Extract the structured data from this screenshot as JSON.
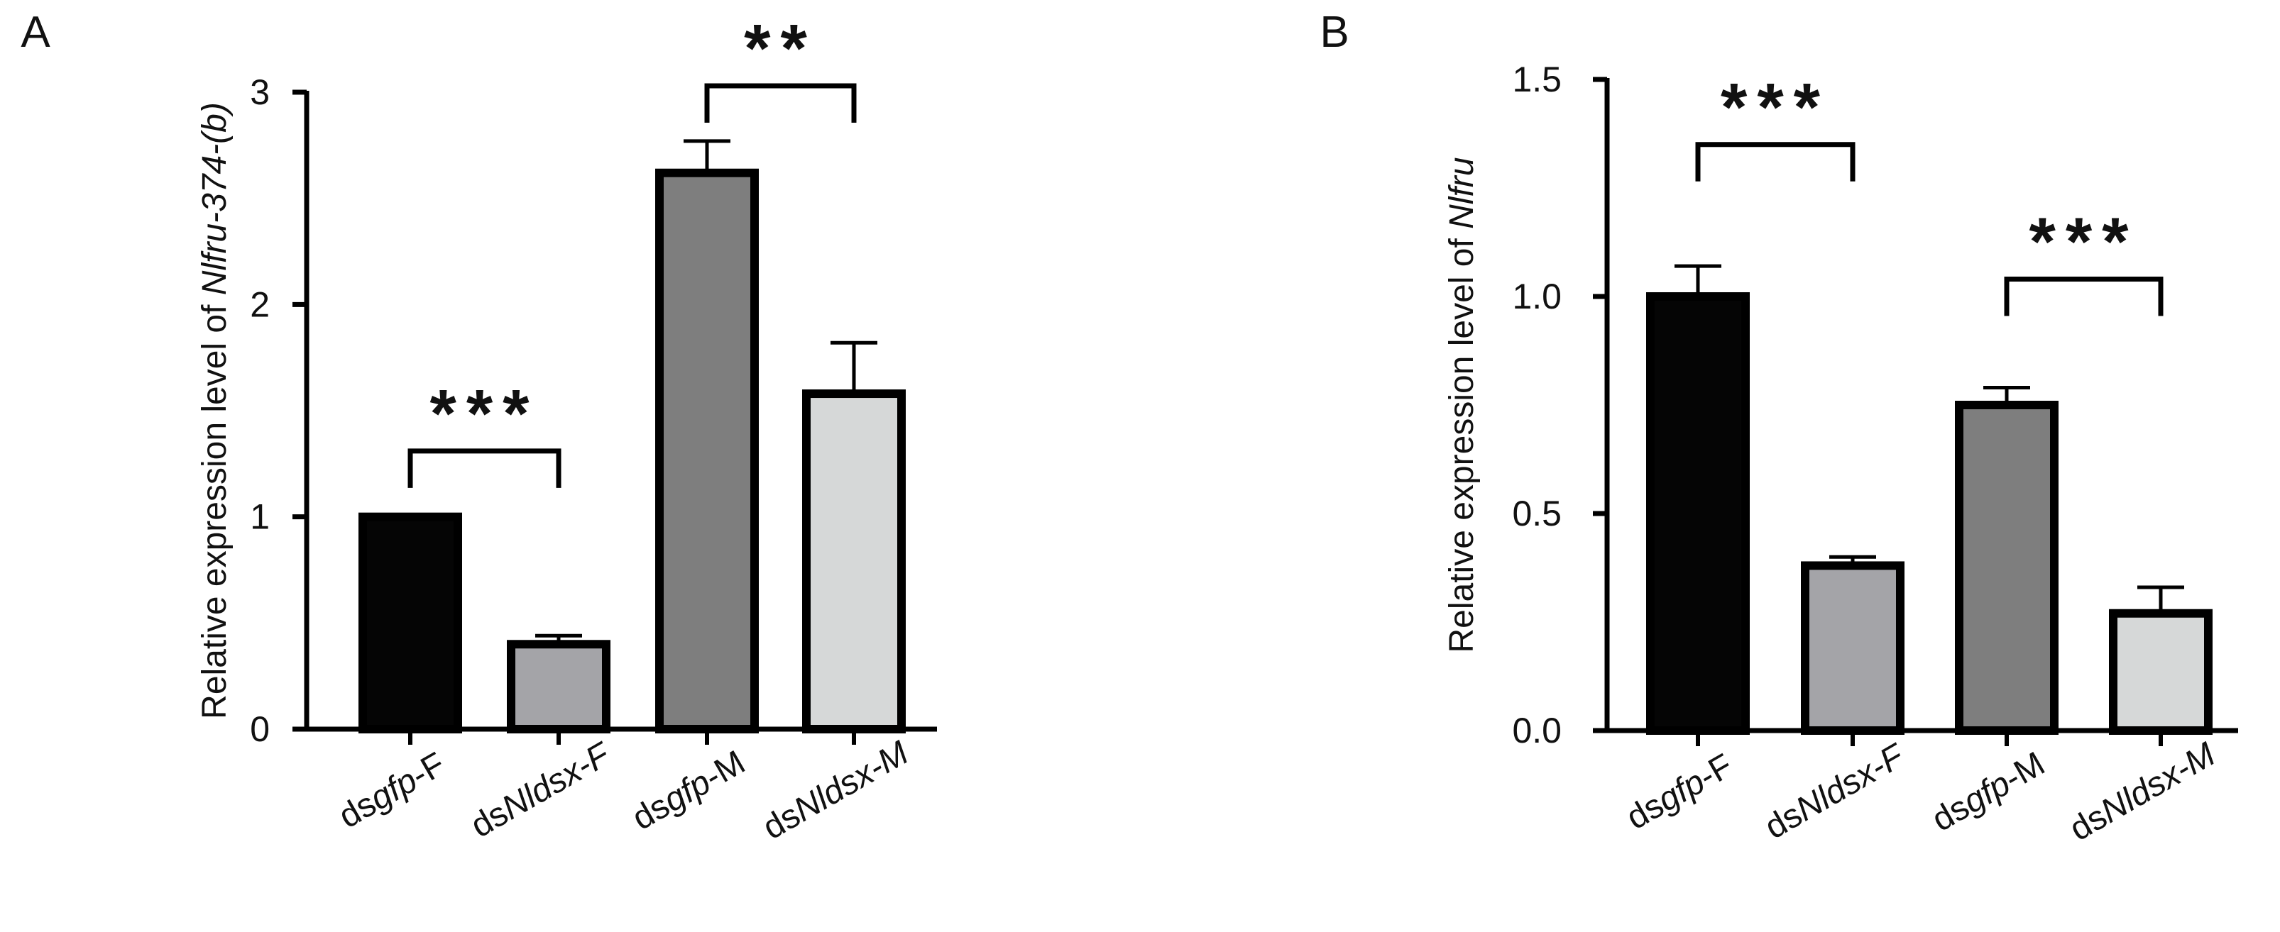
{
  "figure": {
    "colors": {
      "axis": "#000000",
      "bar_outline": "#000000",
      "text": "#111111"
    }
  },
  "chart_data": [
    {
      "panel_label": "A",
      "type": "bar",
      "categories": [
        "dsgfp-F",
        "dsNldsx-F",
        "dsgfp-M",
        "dsNldsx-M"
      ],
      "category_parts": [
        [
          {
            "t": "ds",
            "i": false
          },
          {
            "t": "gfp",
            "i": true
          },
          {
            "t": "-F",
            "i": false
          }
        ],
        [
          {
            "t": "ds",
            "i": false
          },
          {
            "t": "Nldsx",
            "i": true
          },
          {
            "t": "-F",
            "i": true
          }
        ],
        [
          {
            "t": "ds",
            "i": false
          },
          {
            "t": "gfp",
            "i": true
          },
          {
            "t": "-M",
            "i": false
          }
        ],
        [
          {
            "t": "ds",
            "i": false
          },
          {
            "t": "Nldsx",
            "i": true
          },
          {
            "t": "-M",
            "i": true
          }
        ]
      ],
      "values": [
        1.0,
        0.4,
        2.62,
        1.58
      ],
      "errors": [
        0.01,
        0.04,
        0.15,
        0.24
      ],
      "colors": [
        "#050505",
        "#a4a4a8",
        "#7e7e7e",
        "#d6d8d8"
      ],
      "ylabel": "Relative expression level of Nlfru-374-(b)",
      "ylabel_parts": [
        {
          "t": "Relative expression level of ",
          "i": false
        },
        {
          "t": "Nlfru-374-(b)",
          "i": true
        }
      ],
      "ylim": [
        0,
        3
      ],
      "yticks": [
        0,
        1,
        2,
        3
      ],
      "ytick_labels": [
        "0",
        "1",
        "2",
        "3"
      ],
      "significance": [
        {
          "from": 0,
          "to": 1,
          "label": "***",
          "y": 1.31
        },
        {
          "from": 2,
          "to": 3,
          "label": "**",
          "y": 3.03
        }
      ]
    },
    {
      "panel_label": "B",
      "type": "bar",
      "categories": [
        "dsgfp-F",
        "dsNldsx-F",
        "dsgfp-M",
        "dsNldsx-M"
      ],
      "category_parts": [
        [
          {
            "t": "ds",
            "i": false
          },
          {
            "t": "gfp",
            "i": true
          },
          {
            "t": "-F",
            "i": false
          }
        ],
        [
          {
            "t": "ds",
            "i": false
          },
          {
            "t": "Nldsx",
            "i": true
          },
          {
            "t": "-F",
            "i": true
          }
        ],
        [
          {
            "t": "ds",
            "i": false
          },
          {
            "t": "gfp",
            "i": true
          },
          {
            "t": "-M",
            "i": false
          }
        ],
        [
          {
            "t": "ds",
            "i": false
          },
          {
            "t": "Nldsx",
            "i": true
          },
          {
            "t": "-M",
            "i": true
          }
        ]
      ],
      "values": [
        1.0,
        0.38,
        0.75,
        0.27
      ],
      "errors": [
        0.07,
        0.02,
        0.04,
        0.06
      ],
      "colors": [
        "#050505",
        "#a4a4a8",
        "#7e7e7e",
        "#d6d8d8"
      ],
      "ylabel": "Relative expression level of Nlfru",
      "ylabel_parts": [
        {
          "t": "Relative expression level of ",
          "i": false
        },
        {
          "t": "Nlfru",
          "i": true
        }
      ],
      "ylim": [
        0,
        1.5
      ],
      "yticks": [
        0,
        0.5,
        1.0,
        1.5
      ],
      "ytick_labels": [
        "0.0",
        "0.5",
        "1.0",
        "1.5"
      ],
      "significance": [
        {
          "from": 0,
          "to": 1,
          "label": "***",
          "y": 1.35
        },
        {
          "from": 2,
          "to": 3,
          "label": "***",
          "y": 1.04
        }
      ]
    }
  ]
}
